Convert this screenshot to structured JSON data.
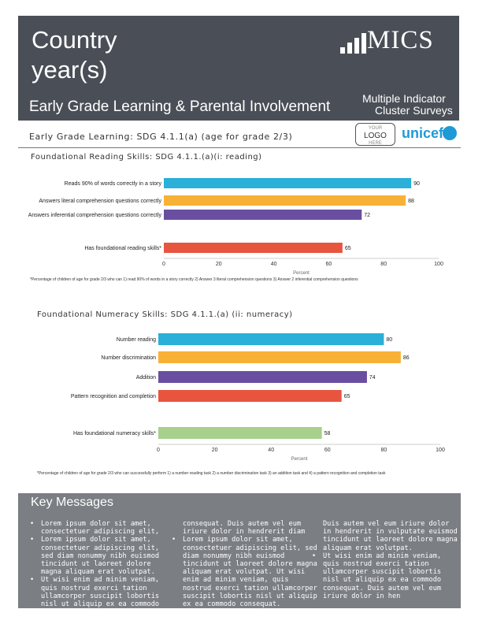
{
  "header": {
    "title_line1": "Country",
    "title_line2": "year(s)",
    "subtitle": "Early Grade Learning & Parental Involvement",
    "mics_logo_text": "MICS",
    "mics_full_line1": "Multiple Indicator",
    "mics_full_line2": "Cluster Surveys",
    "your_logo_line1": "YOUR",
    "your_logo_line2": "LOGO",
    "your_logo_line3": "HERE",
    "unicef": "unicef",
    "colors": {
      "header_bg": "#4a4f57",
      "key_bg": "#7b7e83"
    }
  },
  "section": {
    "title": "Early Grade Learning: SDG 4.1.1(a) (age for grade 2/3)"
  },
  "reading": {
    "title": "Foundational Reading Skills: SDG 4.1.1.(a)(i: reading)",
    "footnote": "*Percentage of children of age for grade 2/3 who can 1) read 90% of words in a story correctly 2) Answer 3 literal comprehension questions 3) Answer 2 inferential comprehension questions"
  },
  "numeracy": {
    "title": "Foundational Numeracy Skills: SDG 4.1.1.(a) (ii: numeracy)",
    "footnote": "*Percentage of children of age for grade 2/3 who can successfully perform 1) a number reading task 2) a number discrimination task 3) an addition task and 4) a pattern recognition and completion task"
  },
  "chart_data": [
    {
      "type": "bar",
      "orientation": "horizontal",
      "categories": [
        "Reads 90% of words correctly in a story",
        "Answers literal comprehension questions correctly",
        "Answers inferential comprehension questions correctly",
        "Has foundational reading skills*"
      ],
      "values": [
        90,
        88,
        72,
        65
      ],
      "colors": [
        "#2ab0d9",
        "#f7b236",
        "#6a4fa0",
        "#e8553f"
      ],
      "xlabel": "Percent",
      "xlim": [
        0,
        100
      ],
      "xticks": [
        0,
        20,
        40,
        60,
        80,
        100
      ]
    },
    {
      "type": "bar",
      "orientation": "horizontal",
      "categories": [
        "Number reading",
        "Number discrimination",
        "Addition",
        "Pattern recognition and completion",
        "Has foundational numeracy skills*"
      ],
      "values": [
        80,
        86,
        74,
        65,
        58
      ],
      "colors": [
        "#2ab0d9",
        "#f7b236",
        "#6a4fa0",
        "#e8553f",
        "#a7d08c"
      ],
      "xlabel": "Percent",
      "xlim": [
        0,
        100
      ],
      "xticks": [
        0,
        20,
        40,
        60,
        80,
        100
      ]
    }
  ],
  "key": {
    "title": "Key Messages",
    "col1": [
      "Lorem ipsum dolor sit amet, consectetuer adipiscing elit,",
      "Lorem ipsum dolor sit amet, consectetuer adipiscing elit, sed diam nonummy nibh euismod tincidunt ut laoreet dolore magna aliquam erat volutpat.",
      "Ut wisi enim ad minim veniam, quis nostrud exerci tation ullamcorper suscipit lobortis nisl ut aliquip ex ea commodo"
    ],
    "col2_lead": "consequat. Duis autem vel eum iriure dolor in hendrerit diam",
    "col2": [
      "Lorem ipsum dolor sit amet, consectetuer adipiscing elit, sed diam nonummy nibh euismod tincidunt ut laoreet dolore magna aliquam erat volutpat. Ut wisi enim ad minim veniam, quis nostrud exerci tation ullamcorper suscipit lobortis nisl ut aliquip ex ea commodo consequat."
    ],
    "col3_lead": "Duis autem vel eum iriure dolor in hendrerit in vulputate euismod tincidunt ut laoreet dolore magna aliquam erat volutpat.",
    "col3": [
      "Ut wisi enim ad minim veniam, quis nostrud exerci tation ullamcorper suscipit lobortis nisl ut aliquip ex ea commodo consequat. Duis autem vel eum iriure dolor in hen"
    ]
  }
}
